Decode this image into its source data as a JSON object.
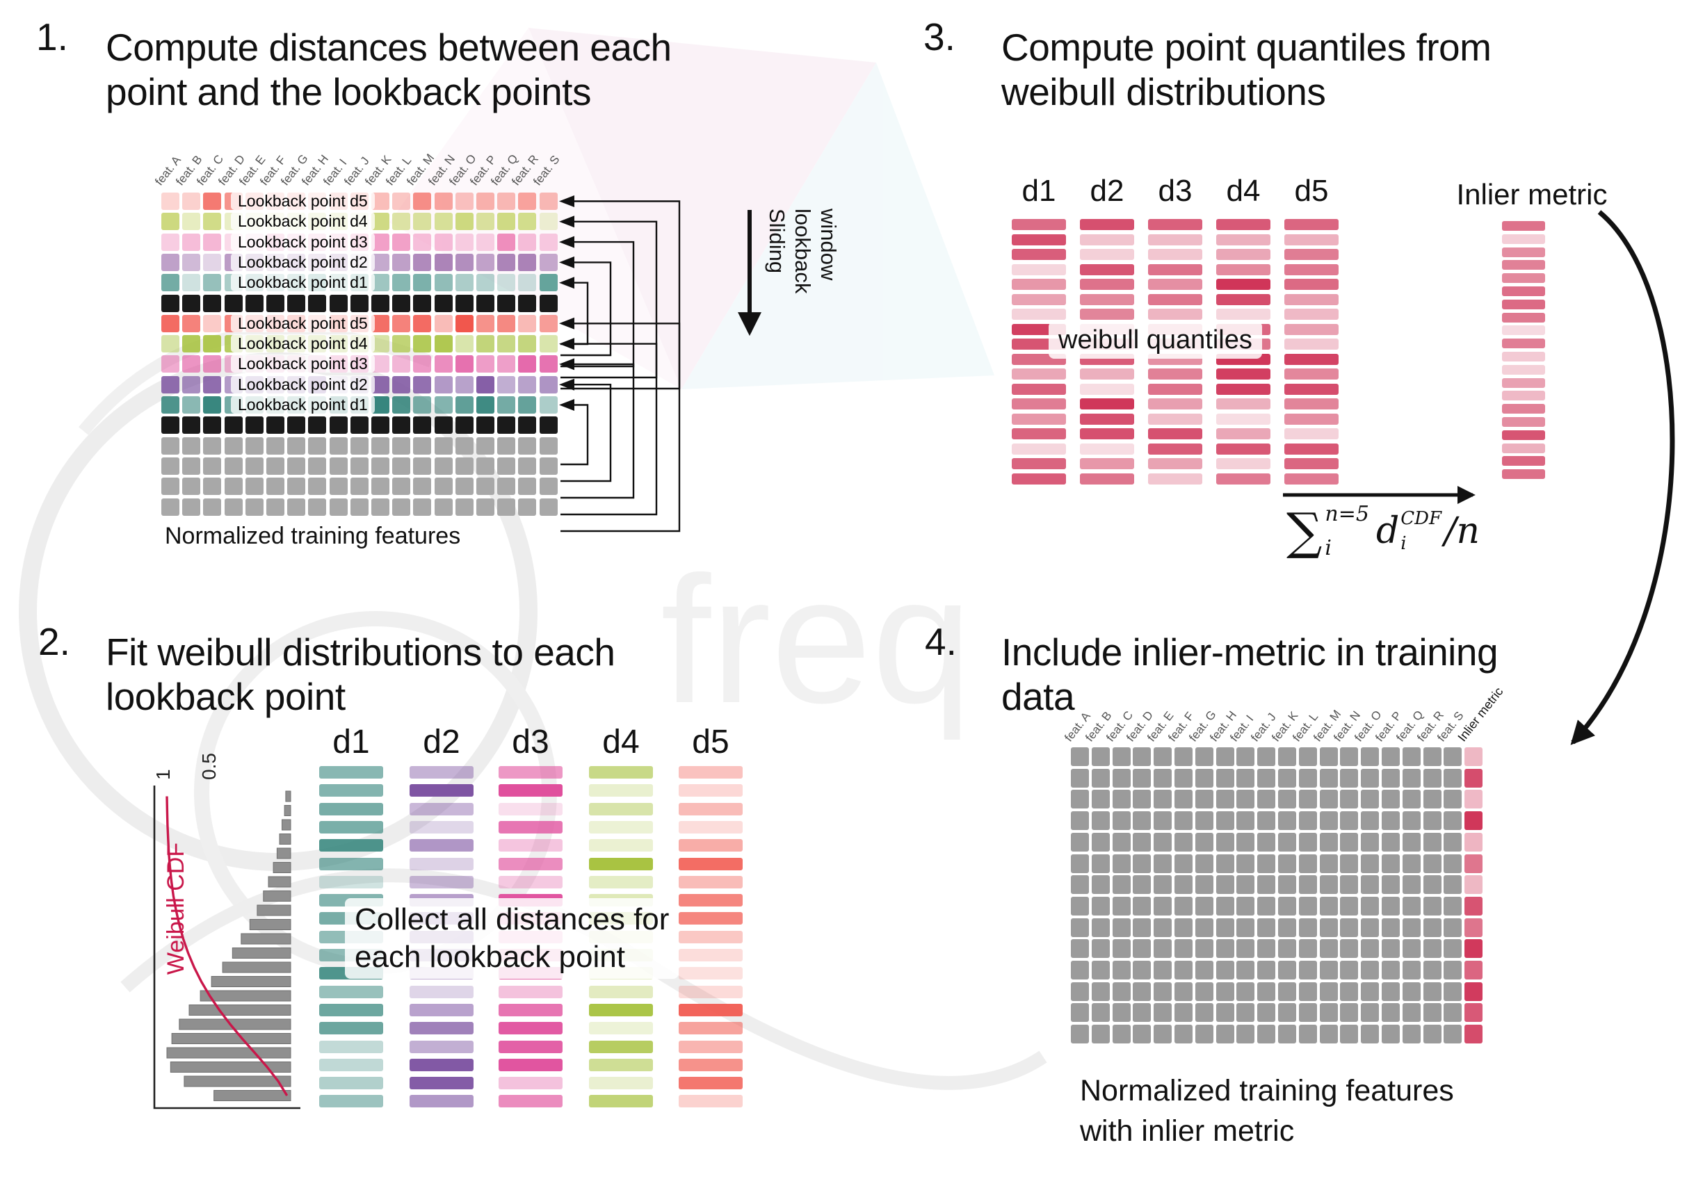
{
  "watermark": {
    "text": "freq"
  },
  "panel1": {
    "number": "1.",
    "title": [
      "Compute distances between each",
      "point and the lookback points"
    ],
    "caption": "Normalized training features",
    "sliding_label": [
      "Sliding",
      "lookback",
      "window"
    ],
    "feature_headers": [
      "feat. A",
      "feat. B",
      "feat. C",
      "feat. D",
      "feat. E",
      "feat. F",
      "feat. G",
      "feat. H",
      "feat. I",
      "feat. J",
      "feat. K",
      "feat. L",
      "feat. M",
      "feat. N",
      "feat. O",
      "feat. P",
      "feat. Q",
      "feat. R",
      "feat. S"
    ],
    "rows": [
      {
        "label": "Lookback point d5",
        "color": "#f4776f",
        "variant": true
      },
      {
        "label": "Lookback point d4",
        "color": "#ccd87c",
        "variant": true
      },
      {
        "label": "Lookback point d3",
        "color": "#ee87b9",
        "variant": true
      },
      {
        "label": "Lookback point d2",
        "color": "#a980b6",
        "variant": true
      },
      {
        "label": "Lookback point d1",
        "color": "#5fa098",
        "variant": true
      },
      {
        "label": "",
        "color": "#1a1a1a",
        "variant": false
      },
      {
        "label": "Lookback point d5",
        "color": "#f1574d",
        "variant": true
      },
      {
        "label": "Lookback point d4",
        "color": "#a7c23e",
        "variant": true
      },
      {
        "label": "Lookback point d3",
        "color": "#e0509d",
        "variant": true
      },
      {
        "label": "Lookback point d2",
        "color": "#7e55a1",
        "variant": true
      },
      {
        "label": "Lookback point d1",
        "color": "#35857c",
        "variant": true
      },
      {
        "label": "",
        "color": "#1a1a1a",
        "variant": false
      },
      {
        "label": "",
        "color": "#a8a8a8",
        "variant": false
      },
      {
        "label": "",
        "color": "#a8a8a8",
        "variant": false
      },
      {
        "label": "",
        "color": "#a8a8a8",
        "variant": false
      },
      {
        "label": "",
        "color": "#a8a8a8",
        "variant": false
      }
    ]
  },
  "panel2": {
    "number": "2.",
    "title": [
      "Fit weibull distributions to each",
      "lookback point"
    ],
    "overlay": [
      "Collect all distances for",
      "each lookback point"
    ],
    "columns": [
      {
        "label": "d1",
        "color": "#35857c"
      },
      {
        "label": "d2",
        "color": "#7b50a0"
      },
      {
        "label": "d3",
        "color": "#e0509d"
      },
      {
        "label": "d4",
        "color": "#a7c23e"
      },
      {
        "label": "d5",
        "color": "#f1574d"
      }
    ]
  },
  "panel3": {
    "number": "3.",
    "title": [
      "Compute point quantiles from",
      "weibull distributions"
    ],
    "overlay": "weibull quantiles",
    "column_labels": [
      "d1",
      "d2",
      "d3",
      "d4",
      "d5"
    ],
    "bar_color": "#cf3357",
    "inlier_label": "Inlier metric",
    "formula": {
      "sum": "∑",
      "sum_sup": "n=5",
      "sum_sub": "i",
      "var": "d",
      "var_sup": "CDF",
      "var_sub": "i",
      "tail": "/n"
    }
  },
  "panel4": {
    "number": "4.",
    "title": [
      "Include inlier-metric in training",
      "data"
    ],
    "caption": [
      "Normalized training features",
      "with inlier metric"
    ],
    "feature_headers": [
      "feat. A",
      "feat. B",
      "feat. C",
      "feat. D",
      "feat. E",
      "feat. F",
      "feat. G",
      "feat. H",
      "feat. I",
      "feat. J",
      "feat. K",
      "feat. L",
      "feat. M",
      "feat. N",
      "feat. O",
      "feat. P",
      "feat. Q",
      "feat. R",
      "feat. S"
    ],
    "inlier_header": "Inlier metric",
    "cell_color": "#9b9b9b",
    "inlier_color": "#cf3357",
    "rows": 14
  },
  "chart_data": {
    "type": "bar",
    "orientation": "horizontal",
    "label": "Weibull CDF",
    "tick_labels": [
      "1",
      "0.5"
    ],
    "bar_color": "#8f8f8f",
    "cdf_color": "#c9174a",
    "bar_values": [
      0.04,
      0.05,
      0.07,
      0.09,
      0.11,
      0.14,
      0.18,
      0.22,
      0.27,
      0.33,
      0.4,
      0.47,
      0.55,
      0.64,
      0.73,
      0.82,
      0.9,
      0.96,
      1.0,
      0.97,
      0.86,
      0.62
    ],
    "cdf_values": [
      1.0,
      0.998,
      0.995,
      0.99,
      0.984,
      0.975,
      0.963,
      0.947,
      0.926,
      0.9,
      0.868,
      0.828,
      0.78,
      0.722,
      0.654,
      0.576,
      0.488,
      0.392,
      0.29,
      0.19,
      0.1,
      0.03
    ]
  }
}
